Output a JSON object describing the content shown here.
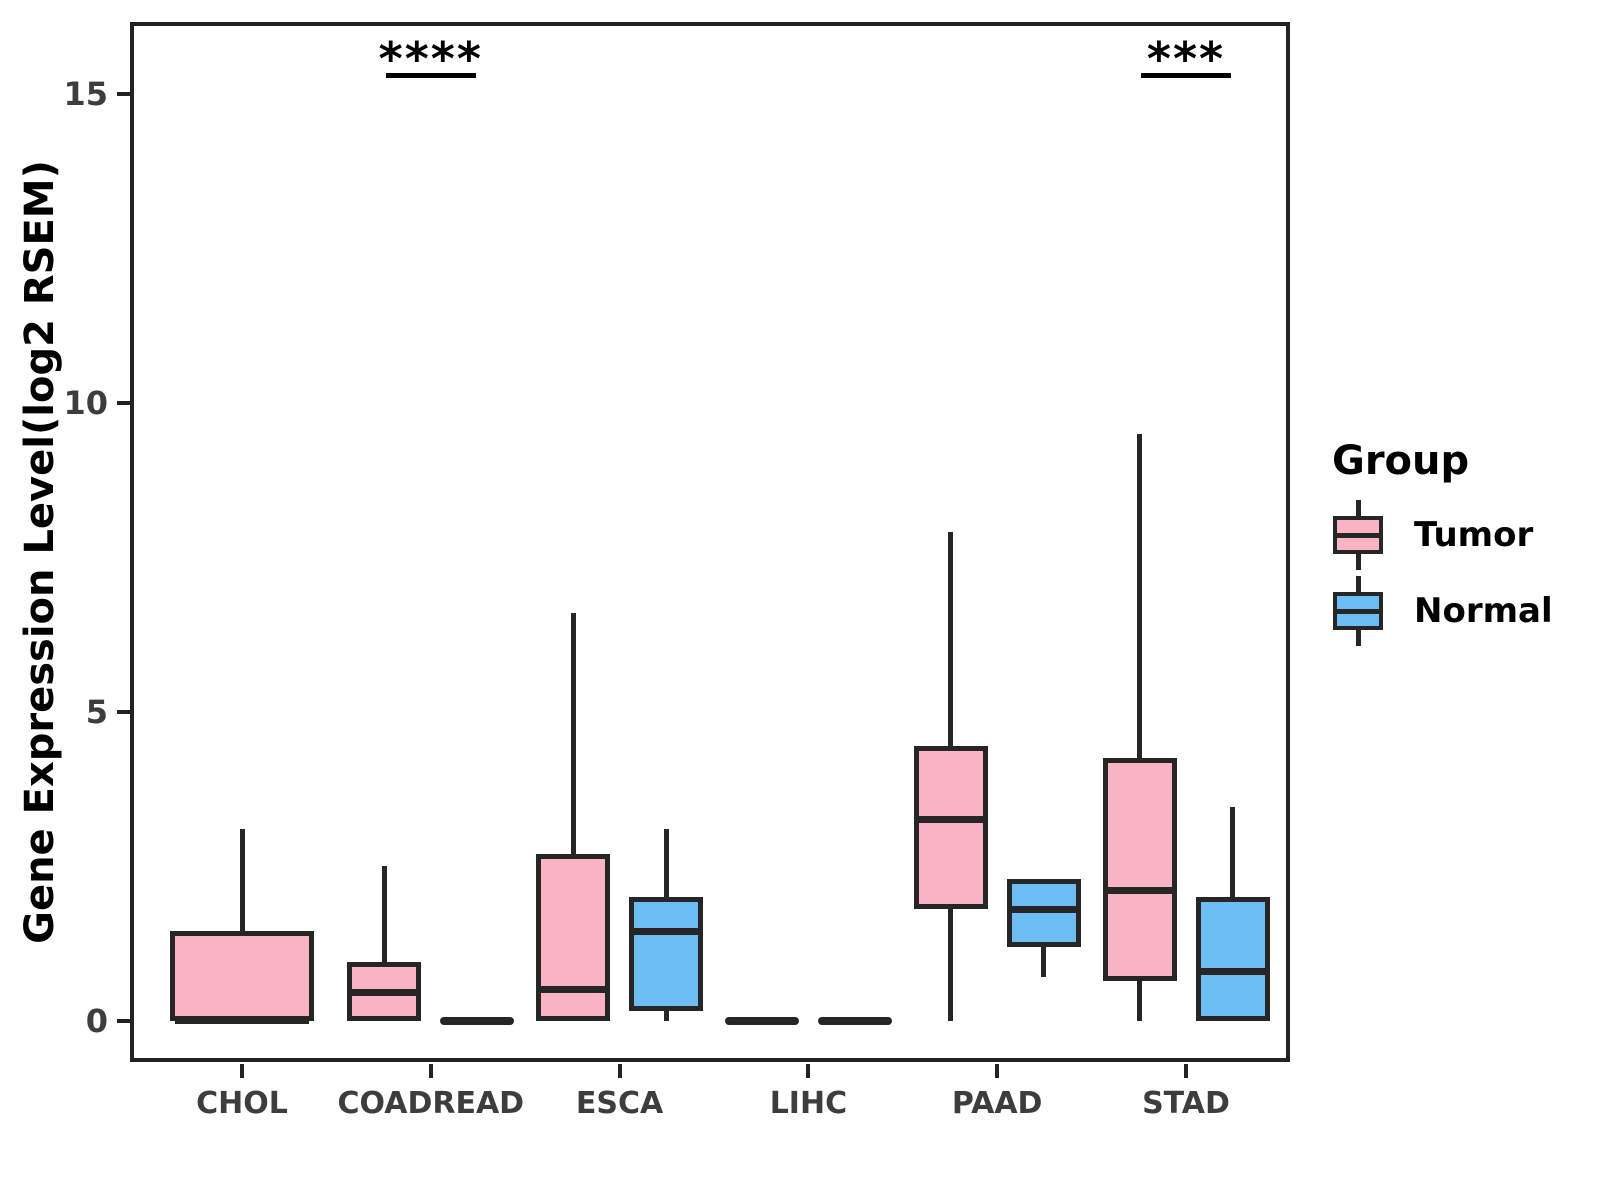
{
  "chart_data": {
    "type": "boxplot",
    "title": "",
    "xlabel": "",
    "ylabel": "Gene Expression Level(log2 RSEM)",
    "ylim": [
      -0.7,
      16.2
    ],
    "yticks": [
      0,
      5,
      10,
      15
    ],
    "grid": "off",
    "categories": [
      "CHOL",
      "COADREAD",
      "ESCA",
      "LIHC",
      "PAAD",
      "STAD"
    ],
    "legend": {
      "title": "Group",
      "position": "right",
      "entries": [
        {
          "label": "Tumor",
          "color": "#F9B3C3"
        },
        {
          "label": "Normal",
          "color": "#6CBDF2"
        }
      ]
    },
    "series": [
      {
        "name": "Tumor",
        "color": "#F9B3C3",
        "boxes": [
          {
            "category": "CHOL",
            "min": 0,
            "q1": 0,
            "median": 0,
            "q3": 1.45,
            "max": 3.1,
            "wide": true
          },
          {
            "category": "COADREAD",
            "min": 0,
            "q1": 0,
            "median": 0.45,
            "q3": 0.95,
            "max": 2.5
          },
          {
            "category": "ESCA",
            "min": 0,
            "q1": 0,
            "median": 0.5,
            "q3": 2.7,
            "max": 6.6
          },
          {
            "category": "LIHC",
            "min": 0,
            "q1": 0,
            "median": 0,
            "q3": 0,
            "max": 0
          },
          {
            "category": "PAAD",
            "min": 0,
            "q1": 1.8,
            "median": 3.25,
            "q3": 4.45,
            "max": 7.9
          },
          {
            "category": "STAD",
            "min": 0,
            "q1": 0.65,
            "median": 2.1,
            "q3": 4.25,
            "max": 9.5
          }
        ]
      },
      {
        "name": "Normal",
        "color": "#6CBDF2",
        "boxes": [
          {
            "category": "CHOL",
            "absent": true
          },
          {
            "category": "COADREAD",
            "min": 0,
            "q1": 0,
            "median": 0,
            "q3": 0,
            "max": 0
          },
          {
            "category": "ESCA",
            "min": 0,
            "q1": 0.15,
            "median": 1.45,
            "q3": 2.0,
            "max": 3.1
          },
          {
            "category": "LIHC",
            "min": 0,
            "q1": 0,
            "median": 0,
            "q3": 0,
            "max": 0
          },
          {
            "category": "PAAD",
            "min": 0.7,
            "q1": 1.2,
            "median": 1.8,
            "q3": 2.3,
            "max": 2.3
          },
          {
            "category": "STAD",
            "min": 0,
            "q1": 0,
            "median": 0.8,
            "q3": 2.0,
            "max": 3.45
          }
        ]
      }
    ],
    "annotations": [
      {
        "category": "COADREAD",
        "text": "****",
        "underline": true
      },
      {
        "category": "STAD",
        "text": "***",
        "underline": true
      }
    ]
  }
}
